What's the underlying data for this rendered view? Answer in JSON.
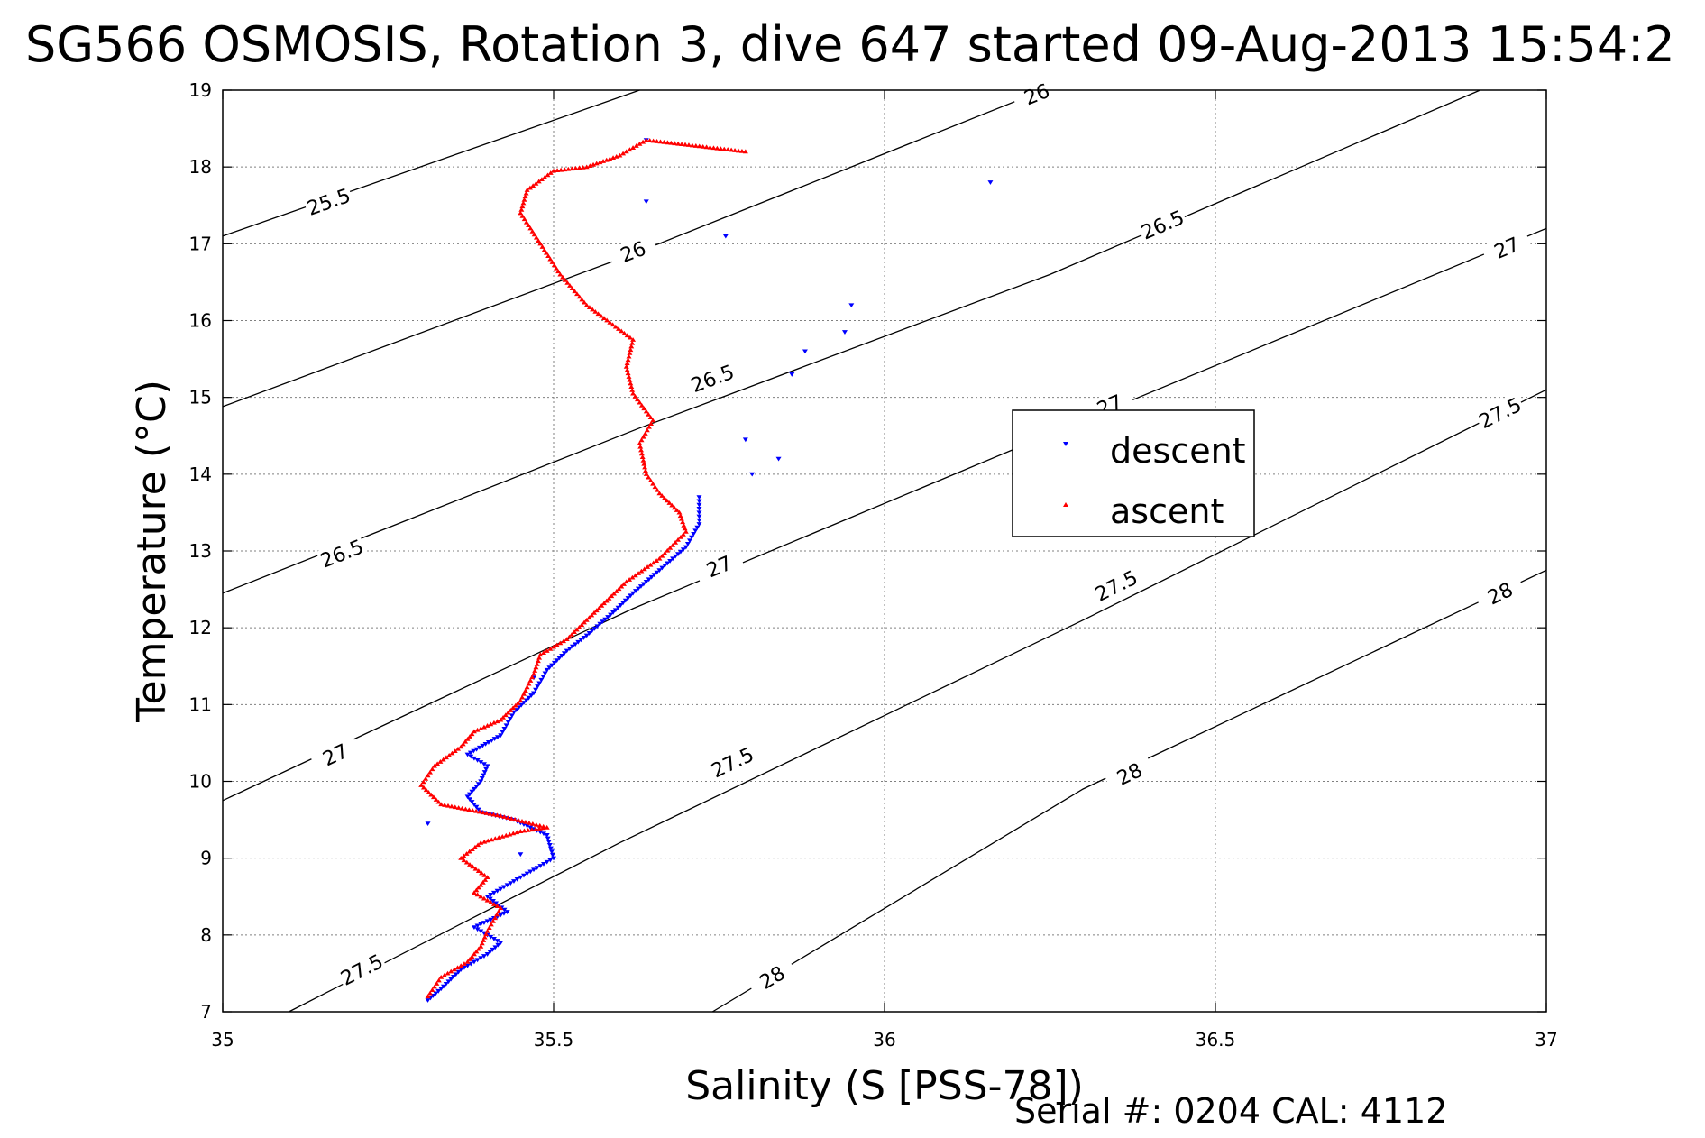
{
  "title": "SG566 OSMOSIS, Rotation 3, dive 647 started 09-Aug-2013 15:54:2",
  "footer": {
    "serial_label": "Serial #:",
    "serial_value": "0204",
    "cal_label": "CAL:",
    "cal_value": "4112",
    "serial_text": "Serial #: 0204  CAL: 4112"
  },
  "colors": {
    "descent": "#0000ff",
    "ascent": "#ff0000",
    "contour": "#000000",
    "grid": "#808080"
  },
  "chart_data": {
    "type": "scatter",
    "title": "SG566 OSMOSIS, Rotation 3, dive 647 started 09-Aug-2013 15:54:2",
    "xlabel": "Salinity (S [PSS-78])",
    "ylabel": "Temperature (°C)",
    "xlim": [
      35,
      37
    ],
    "ylim": [
      7,
      19
    ],
    "xticks": [
      "35",
      "35.5",
      "36",
      "36.5",
      "37"
    ],
    "yticks": [
      "7",
      "8",
      "9",
      "10",
      "11",
      "12",
      "13",
      "14",
      "15",
      "16",
      "17",
      "18",
      "19"
    ],
    "grid": true,
    "legend": {
      "position": "center-right",
      "entries": [
        "descent",
        "ascent"
      ]
    },
    "series": [
      {
        "name": "descent",
        "marker": "triangle-down",
        "color": "#0000ff",
        "path": [
          [
            35.31,
            7.15
          ],
          [
            35.33,
            7.3
          ],
          [
            35.36,
            7.55
          ],
          [
            35.4,
            7.75
          ],
          [
            35.42,
            7.9
          ],
          [
            35.38,
            8.1
          ],
          [
            35.43,
            8.3
          ],
          [
            35.4,
            8.5
          ],
          [
            35.43,
            8.65
          ],
          [
            35.47,
            8.85
          ],
          [
            35.5,
            9.0
          ],
          [
            35.49,
            9.3
          ],
          [
            35.44,
            9.5
          ],
          [
            35.39,
            9.6
          ],
          [
            35.37,
            9.8
          ],
          [
            35.39,
            10.0
          ],
          [
            35.4,
            10.2
          ],
          [
            35.37,
            10.35
          ],
          [
            35.42,
            10.6
          ],
          [
            35.44,
            10.9
          ],
          [
            35.47,
            11.15
          ],
          [
            35.49,
            11.45
          ],
          [
            35.52,
            11.7
          ],
          [
            35.55,
            11.9
          ],
          [
            35.59,
            12.2
          ],
          [
            35.62,
            12.45
          ],
          [
            35.66,
            12.75
          ],
          [
            35.7,
            13.05
          ],
          [
            35.72,
            13.35
          ],
          [
            35.72,
            13.7
          ]
        ],
        "extra": [
          [
            35.8,
            14.0
          ],
          [
            35.84,
            14.2
          ],
          [
            35.79,
            14.45
          ],
          [
            35.86,
            15.3
          ],
          [
            35.88,
            15.6
          ],
          [
            35.94,
            15.85
          ],
          [
            35.95,
            16.2
          ],
          [
            35.76,
            17.1
          ],
          [
            35.64,
            17.55
          ],
          [
            35.64,
            18.35
          ],
          [
            36.16,
            17.8
          ],
          [
            35.31,
            9.45
          ],
          [
            35.45,
            9.05
          ],
          [
            35.47,
            11.35
          ]
        ]
      },
      {
        "name": "ascent",
        "marker": "triangle-up",
        "color": "#ff0000",
        "path": [
          [
            35.31,
            7.2
          ],
          [
            35.33,
            7.45
          ],
          [
            35.37,
            7.65
          ],
          [
            35.39,
            7.85
          ],
          [
            35.4,
            8.05
          ],
          [
            35.42,
            8.35
          ],
          [
            35.38,
            8.55
          ],
          [
            35.4,
            8.75
          ],
          [
            35.36,
            9.0
          ],
          [
            35.39,
            9.2
          ],
          [
            35.45,
            9.35
          ],
          [
            35.49,
            9.4
          ],
          [
            35.42,
            9.55
          ],
          [
            35.33,
            9.7
          ],
          [
            35.3,
            9.95
          ],
          [
            35.32,
            10.2
          ],
          [
            35.36,
            10.45
          ],
          [
            35.38,
            10.65
          ],
          [
            35.42,
            10.8
          ],
          [
            35.45,
            11.05
          ],
          [
            35.47,
            11.4
          ],
          [
            35.48,
            11.65
          ],
          [
            35.52,
            11.85
          ],
          [
            35.55,
            12.1
          ],
          [
            35.58,
            12.35
          ],
          [
            35.61,
            12.6
          ],
          [
            35.66,
            12.9
          ],
          [
            35.7,
            13.25
          ],
          [
            35.69,
            13.5
          ],
          [
            35.66,
            13.75
          ],
          [
            35.64,
            14.0
          ],
          [
            35.63,
            14.4
          ],
          [
            35.65,
            14.7
          ],
          [
            35.62,
            15.05
          ],
          [
            35.61,
            15.4
          ],
          [
            35.62,
            15.75
          ],
          [
            35.55,
            16.2
          ],
          [
            35.51,
            16.6
          ],
          [
            35.45,
            17.4
          ],
          [
            35.46,
            17.7
          ],
          [
            35.5,
            17.95
          ],
          [
            35.55,
            18.0
          ],
          [
            35.6,
            18.15
          ],
          [
            35.64,
            18.35
          ],
          [
            35.79,
            18.2
          ]
        ]
      }
    ],
    "isopycnals": [
      {
        "label": "25.5",
        "points": [
          [
            35,
            17.1
          ],
          [
            35.63,
            19
          ]
        ],
        "label_at": [
          [
            35.16,
            17.55
          ]
        ]
      },
      {
        "label": "26",
        "points": [
          [
            35,
            14.88
          ],
          [
            35.63,
            16.9
          ],
          [
            36.24,
            19
          ]
        ],
        "label_at": [
          [
            35.62,
            16.9
          ],
          [
            36.23,
            18.95
          ]
        ]
      },
      {
        "label": "26.5",
        "points": [
          [
            35,
            12.45
          ],
          [
            35.63,
            14.6
          ],
          [
            36.25,
            16.6
          ],
          [
            36.9,
            19
          ]
        ],
        "label_at": [
          [
            35.18,
            12.97
          ],
          [
            35.74,
            15.25
          ],
          [
            36.42,
            17.25
          ]
        ]
      },
      {
        "label": "27",
        "points": [
          [
            35,
            9.75
          ],
          [
            35.62,
            12.25
          ],
          [
            36.3,
            14.7
          ],
          [
            37,
            17.2
          ]
        ],
        "label_at": [
          [
            35.17,
            10.35
          ],
          [
            35.75,
            12.8
          ],
          [
            36.34,
            14.9
          ],
          [
            36.94,
            16.95
          ]
        ]
      },
      {
        "label": "27.5",
        "points": [
          [
            35.1,
            7
          ],
          [
            35.6,
            9.2
          ],
          [
            36.3,
            12.1
          ],
          [
            37,
            15.1
          ]
        ],
        "label_at": [
          [
            35.21,
            7.55
          ],
          [
            35.77,
            10.25
          ],
          [
            36.35,
            12.55
          ],
          [
            36.93,
            14.8
          ]
        ]
      },
      {
        "label": "28",
        "points": [
          [
            35.74,
            7
          ],
          [
            36.3,
            9.9
          ],
          [
            37,
            12.75
          ]
        ],
        "label_at": [
          [
            35.83,
            7.45
          ],
          [
            36.37,
            10.1
          ],
          [
            36.93,
            12.45
          ]
        ]
      }
    ]
  }
}
